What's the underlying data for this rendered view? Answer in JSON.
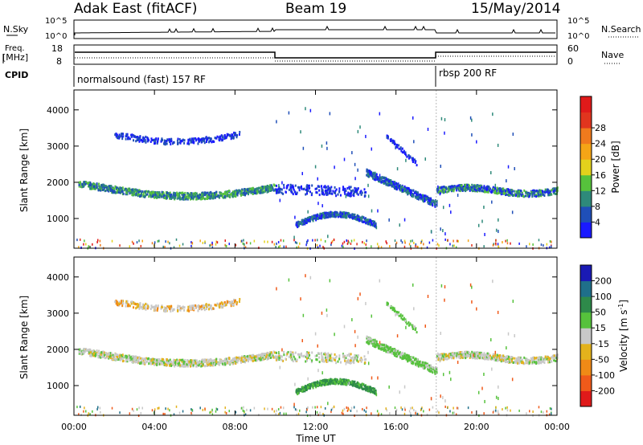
{
  "header": {
    "station": "Adak East (fitACF)",
    "beam": "Beam 19",
    "date": "15/May/2014"
  },
  "top_panels": {
    "nsky_label": "N.Sky",
    "nsearch_label": "N.Search",
    "nsky_ticks": [
      "10^5",
      "10^0"
    ],
    "nsearch_ticks": [
      "10^5",
      "10^0"
    ],
    "freq_label_1": "Freq.",
    "freq_label_2": "[MHz]",
    "freq_ticks": [
      "18",
      "8"
    ],
    "nave_label": "Nave",
    "nave_ticks": [
      "60",
      "0"
    ],
    "cpid_label": "CPID",
    "cpid_segments": [
      {
        "label": "normalsound (fast) 157 RF",
        "start_h": 0,
        "end_h": 18
      },
      {
        "label": "rbsp 200 RF",
        "start_h": 18,
        "end_h": 24
      }
    ]
  },
  "colorbars": {
    "power": {
      "label": "Power [dB]",
      "ticks": [
        "4",
        "8",
        "12",
        "16",
        "20",
        "24",
        "28"
      ],
      "colors": [
        "#1a1aff",
        "#1f4fb8",
        "#2e8a7a",
        "#56c23c",
        "#e3d21c",
        "#f5a516",
        "#f07a1d",
        "#e1351e",
        "#e01a1a"
      ]
    },
    "velocity": {
      "label_main": "Velocity [m s",
      "label_sup": "-1",
      "label_end": "]",
      "ticks": [
        "200",
        "100",
        "50",
        "15",
        "-15",
        "-50",
        "-100",
        "-200"
      ],
      "colors": [
        "#1a1ab4",
        "#1f6f8a",
        "#2e8a4a",
        "#56c23c",
        "#c8c8c8",
        "#e3b21c",
        "#f08a16",
        "#f05a1a",
        "#e01a1a"
      ]
    }
  },
  "chart_data": [
    {
      "type": "heatmap",
      "title": "Power",
      "ylabel": "Slant Range [km]",
      "xlabel": "",
      "xlim": [
        0,
        24
      ],
      "ylim": [
        180,
        4550
      ],
      "yticks": [
        "1000",
        "2000",
        "3000",
        "4000"
      ],
      "grid": false
    },
    {
      "type": "heatmap",
      "title": "Velocity",
      "ylabel": "Slant Range [km]",
      "xlabel": "Time UT",
      "xlim": [
        0,
        24
      ],
      "ylim": [
        180,
        4550
      ],
      "xticks": [
        "00:00",
        "04:00",
        "08:00",
        "12:00",
        "16:00",
        "20:00",
        "00:00"
      ],
      "yticks": [
        "1000",
        "2000",
        "3000",
        "4000"
      ],
      "grid": false
    }
  ]
}
